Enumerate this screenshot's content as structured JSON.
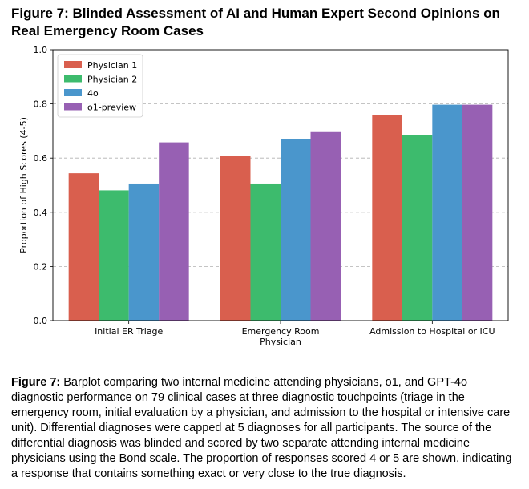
{
  "figure": {
    "label": "Figure 7:",
    "title": "Blinded Assessment of AI and Human Expert Second Opinions on Real Emergency Room Cases"
  },
  "caption": {
    "label": "Figure 7:",
    "text": "Barplot comparing two internal medicine attending physicians, o1, and GPT-4o diagnostic performance on 79 clinical cases at three diagnostic touchpoints (triage in the emergency room, initial evaluation by a physician, and admission to the hospital or intensive care unit). Differential diagnoses were capped at 5 diagnoses for all participants. The source of the differential diagnosis was blinded and scored by two separate attending internal medicine physicians using the Bond scale. The proportion of responses scored 4 or 5 are shown, indicating a response that contains something exact or very close to the true diagnosis."
  },
  "chart_data": {
    "type": "bar",
    "title": "",
    "xlabel": "",
    "ylabel": "Proportion of High Scores (4-5)",
    "ylim": [
      0,
      1.0
    ],
    "yticks": [
      "0.0",
      "0.2",
      "0.4",
      "0.6",
      "0.8",
      "1.0"
    ],
    "grid": "y",
    "legend_position": "top-left",
    "categories": [
      [
        "Initial ER Triage"
      ],
      [
        "Emergency Room",
        "Physician"
      ],
      [
        "Admission to Hospital or ICU"
      ]
    ],
    "series": [
      {
        "name": "Physician 1",
        "color": "#d95f4e",
        "values": [
          0.544,
          0.608,
          0.759
        ]
      },
      {
        "name": "Physician 2",
        "color": "#3dbb6d",
        "values": [
          0.481,
          0.506,
          0.684
        ]
      },
      {
        "name": "4o",
        "color": "#4a96cc",
        "values": [
          0.506,
          0.671,
          0.797
        ]
      },
      {
        "name": "o1-preview",
        "color": "#9760b3",
        "values": [
          0.658,
          0.696,
          0.797
        ]
      }
    ]
  }
}
